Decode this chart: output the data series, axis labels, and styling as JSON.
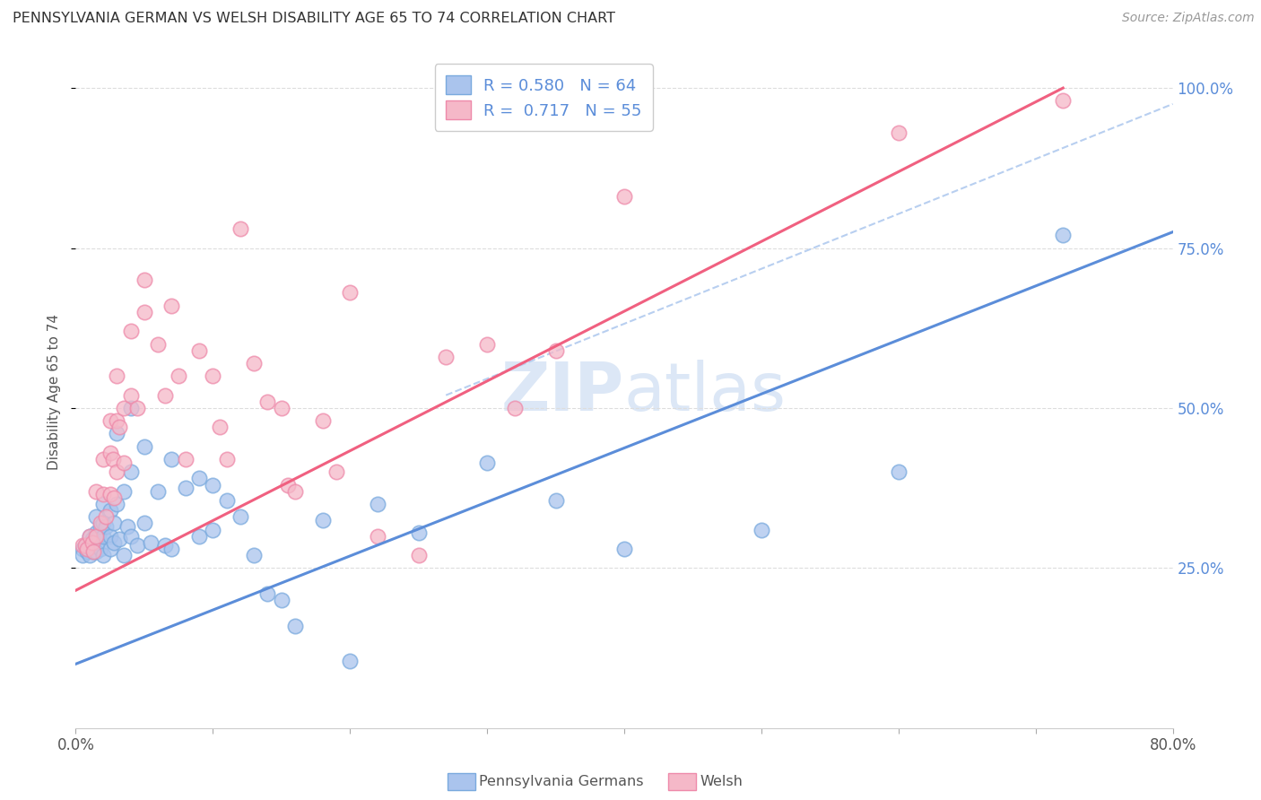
{
  "title": "PENNSYLVANIA GERMAN VS WELSH DISABILITY AGE 65 TO 74 CORRELATION CHART",
  "source": "Source: ZipAtlas.com",
  "ylabel": "Disability Age 65 to 74",
  "xlim": [
    0.0,
    0.8
  ],
  "ylim": [
    0.0,
    1.05
  ],
  "yticks": [
    0.25,
    0.5,
    0.75,
    1.0
  ],
  "ytick_labels": [
    "25.0%",
    "50.0%",
    "75.0%",
    "100.0%"
  ],
  "blue_R": 0.58,
  "blue_N": 64,
  "pink_R": 0.717,
  "pink_N": 55,
  "blue_fill_color": "#aac4ed",
  "blue_edge_color": "#7aaade",
  "pink_fill_color": "#f5b8c8",
  "pink_edge_color": "#ee8aaa",
  "blue_line_color": "#5b8dd9",
  "pink_line_color": "#f06080",
  "diag_line_color": "#b8cff0",
  "legend_text_color": "#5b8dd9",
  "watermark_color": "#ccdff5",
  "background_color": "#ffffff",
  "blue_scatter_x": [
    0.005,
    0.005,
    0.007,
    0.008,
    0.01,
    0.01,
    0.01,
    0.012,
    0.013,
    0.015,
    0.015,
    0.015,
    0.015,
    0.017,
    0.018,
    0.018,
    0.02,
    0.02,
    0.02,
    0.02,
    0.022,
    0.025,
    0.025,
    0.025,
    0.028,
    0.028,
    0.03,
    0.03,
    0.032,
    0.035,
    0.035,
    0.038,
    0.04,
    0.04,
    0.04,
    0.045,
    0.05,
    0.05,
    0.055,
    0.06,
    0.065,
    0.07,
    0.07,
    0.08,
    0.09,
    0.09,
    0.1,
    0.1,
    0.11,
    0.12,
    0.13,
    0.14,
    0.15,
    0.16,
    0.18,
    0.2,
    0.22,
    0.25,
    0.3,
    0.35,
    0.4,
    0.5,
    0.6,
    0.72
  ],
  "blue_scatter_y": [
    0.28,
    0.27,
    0.285,
    0.275,
    0.3,
    0.285,
    0.27,
    0.295,
    0.275,
    0.33,
    0.305,
    0.285,
    0.275,
    0.3,
    0.315,
    0.28,
    0.35,
    0.32,
    0.3,
    0.27,
    0.315,
    0.34,
    0.3,
    0.28,
    0.32,
    0.29,
    0.46,
    0.35,
    0.295,
    0.37,
    0.27,
    0.315,
    0.5,
    0.4,
    0.3,
    0.285,
    0.44,
    0.32,
    0.29,
    0.37,
    0.285,
    0.42,
    0.28,
    0.375,
    0.39,
    0.3,
    0.38,
    0.31,
    0.355,
    0.33,
    0.27,
    0.21,
    0.2,
    0.16,
    0.325,
    0.105,
    0.35,
    0.305,
    0.415,
    0.355,
    0.28,
    0.31,
    0.4,
    0.77
  ],
  "pink_scatter_x": [
    0.005,
    0.007,
    0.008,
    0.01,
    0.012,
    0.013,
    0.015,
    0.015,
    0.018,
    0.02,
    0.02,
    0.022,
    0.025,
    0.025,
    0.025,
    0.027,
    0.028,
    0.03,
    0.03,
    0.03,
    0.032,
    0.035,
    0.035,
    0.04,
    0.04,
    0.045,
    0.05,
    0.05,
    0.06,
    0.065,
    0.07,
    0.075,
    0.08,
    0.09,
    0.1,
    0.105,
    0.11,
    0.12,
    0.13,
    0.14,
    0.15,
    0.155,
    0.16,
    0.18,
    0.19,
    0.2,
    0.22,
    0.25,
    0.27,
    0.3,
    0.32,
    0.35,
    0.4,
    0.6,
    0.72
  ],
  "pink_scatter_y": [
    0.285,
    0.285,
    0.28,
    0.3,
    0.29,
    0.275,
    0.37,
    0.3,
    0.32,
    0.42,
    0.365,
    0.33,
    0.48,
    0.43,
    0.365,
    0.42,
    0.36,
    0.55,
    0.48,
    0.4,
    0.47,
    0.5,
    0.415,
    0.62,
    0.52,
    0.5,
    0.7,
    0.65,
    0.6,
    0.52,
    0.66,
    0.55,
    0.42,
    0.59,
    0.55,
    0.47,
    0.42,
    0.78,
    0.57,
    0.51,
    0.5,
    0.38,
    0.37,
    0.48,
    0.4,
    0.68,
    0.3,
    0.27,
    0.58,
    0.6,
    0.5,
    0.59,
    0.83,
    0.93,
    0.98
  ],
  "blue_line_x0": 0.0,
  "blue_line_x1": 0.8,
  "blue_line_y0": 0.1,
  "blue_line_y1": 0.775,
  "pink_line_x0": 0.0,
  "pink_line_x1": 0.72,
  "pink_line_y0": 0.215,
  "pink_line_y1": 1.0,
  "diag_line_x0": 0.27,
  "diag_line_x1": 0.8,
  "diag_line_y0": 0.52,
  "diag_line_y1": 0.975
}
